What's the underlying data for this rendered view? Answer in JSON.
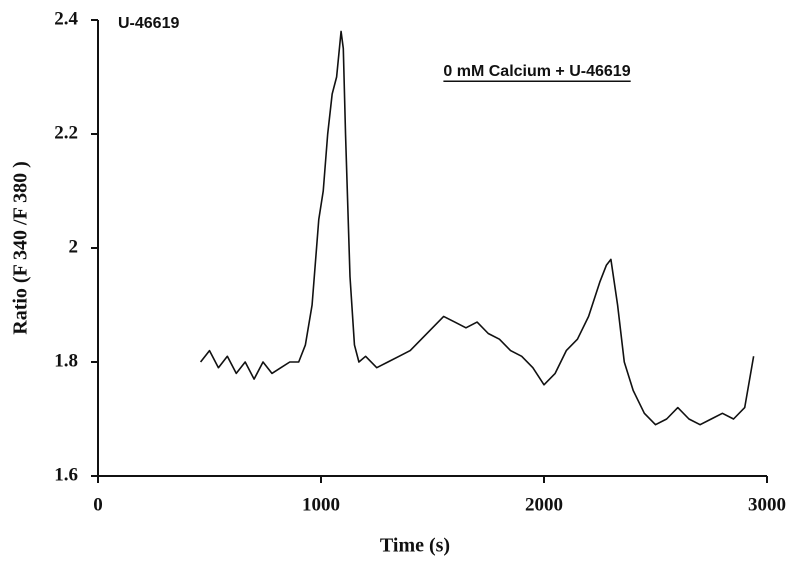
{
  "chart_data": {
    "type": "line",
    "annotations": [
      "U-46619",
      "0 mM Calcium + U-46619"
    ],
    "x_label": "Time (s)",
    "y_label": "Ratio (F 340 /F 380 )",
    "x": [
      460,
      500,
      540,
      580,
      620,
      660,
      700,
      740,
      780,
      820,
      860,
      900,
      930,
      960,
      990,
      1010,
      1030,
      1050,
      1070,
      1090,
      1100,
      1110,
      1130,
      1150,
      1170,
      1200,
      1250,
      1300,
      1350,
      1400,
      1450,
      1500,
      1550,
      1600,
      1650,
      1700,
      1750,
      1800,
      1850,
      1900,
      1950,
      2000,
      2050,
      2100,
      2150,
      2200,
      2250,
      2280,
      2300,
      2330,
      2360,
      2400,
      2450,
      2500,
      2550,
      2600,
      2650,
      2700,
      2750,
      2800,
      2850,
      2900,
      2940
    ],
    "values": [
      1.8,
      1.82,
      1.79,
      1.81,
      1.78,
      1.8,
      1.77,
      1.8,
      1.78,
      1.79,
      1.8,
      1.8,
      1.83,
      1.9,
      2.05,
      2.1,
      2.2,
      2.27,
      2.3,
      2.38,
      2.35,
      2.2,
      1.95,
      1.83,
      1.8,
      1.81,
      1.79,
      1.8,
      1.81,
      1.82,
      1.84,
      1.86,
      1.88,
      1.87,
      1.86,
      1.87,
      1.85,
      1.84,
      1.82,
      1.81,
      1.79,
      1.76,
      1.78,
      1.82,
      1.84,
      1.88,
      1.94,
      1.97,
      1.98,
      1.9,
      1.8,
      1.75,
      1.71,
      1.69,
      1.7,
      1.72,
      1.7,
      1.69,
      1.7,
      1.71,
      1.7,
      1.72,
      1.81
    ],
    "color": "#111111",
    "xlim": [
      0,
      3000
    ],
    "xticks": [
      0,
      1000,
      2000,
      3000
    ],
    "ylim": [
      1.6,
      2.4
    ],
    "yticks": [
      1.6,
      1.8,
      2,
      2.2,
      2.4
    ],
    "grid": false
  }
}
